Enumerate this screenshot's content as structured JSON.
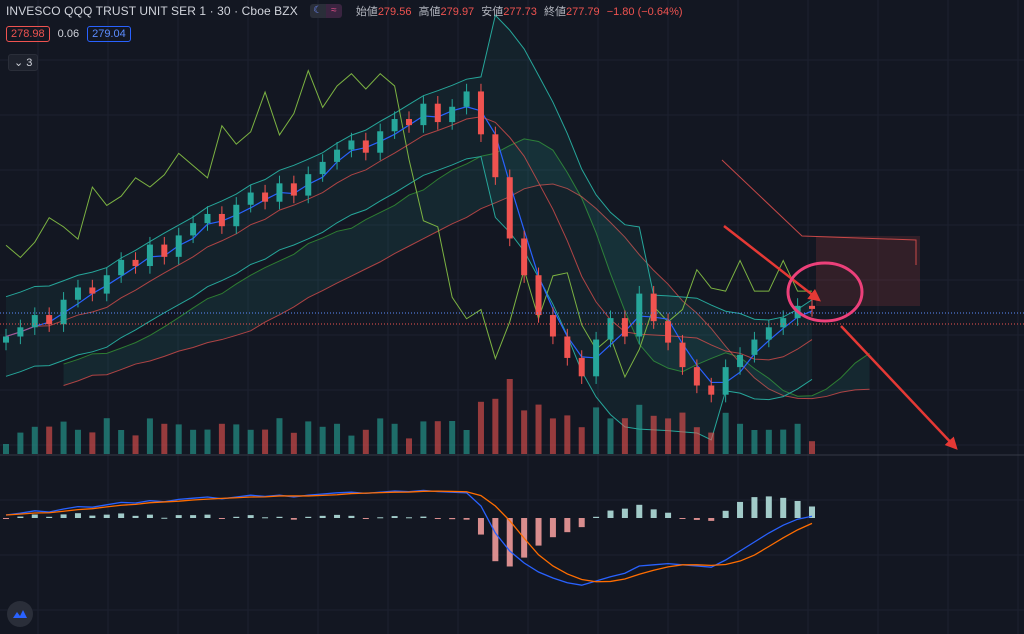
{
  "header": {
    "symbol": "INVESCO QQQ TRUST UNIT SER 1 · 30 · Cboe BZX",
    "ohlc": [
      {
        "label": "始値",
        "value": "279.56"
      },
      {
        "label": "高値",
        "value": "279.97"
      },
      {
        "label": "安値",
        "value": "277.73"
      },
      {
        "label": "終値",
        "value": "277.79"
      }
    ],
    "change": "−1.80 (−0.64%)"
  },
  "prices": {
    "bid": "278.98",
    "spread": "0.06",
    "ask": "279.04"
  },
  "collapse": {
    "label": "3"
  },
  "icons": {
    "theme": "moon-icon",
    "compare": "waves-icon",
    "chevron": "chevron-down-icon",
    "logo": "tradingview-logo-icon"
  },
  "colors": {
    "up": "#26a69a",
    "down": "#ef5350",
    "bg": "#131722",
    "annotation": "#e53935",
    "circle": "#ec407a"
  },
  "chart_data": {
    "type": "line",
    "series": [
      {
        "values": [
          272.6,
          272.9,
          273.3,
          273.0,
          273.8,
          274.2,
          274.0,
          274.6,
          275.1,
          274.9,
          275.6,
          275.2,
          275.9,
          276.3,
          276.6,
          276.2,
          276.9,
          277.3,
          277.0,
          277.6,
          277.2,
          277.9,
          278.3,
          278.7,
          279.0,
          278.6,
          279.3,
          279.7,
          279.5,
          280.2,
          279.6,
          280.1,
          280.6,
          279.2,
          277.8,
          275.8,
          274.6,
          273.3,
          272.6,
          271.9,
          271.3,
          272.5,
          273.2,
          272.6,
          274.0,
          273.1,
          272.4,
          271.6,
          271.0,
          270.7,
          271.6,
          272.0,
          272.5,
          272.9,
          273.2,
          273.6,
          273.5
        ]
      },
      {
        "values": [
          0.05,
          0.08,
          0.12,
          0.1,
          0.15,
          0.19,
          0.18,
          0.22,
          0.26,
          0.25,
          0.29,
          0.27,
          0.31,
          0.33,
          0.35,
          0.32,
          0.35,
          0.38,
          0.36,
          0.38,
          0.35,
          0.38,
          0.4,
          0.42,
          0.43,
          0.41,
          0.43,
          0.45,
          0.44,
          0.46,
          0.44,
          0.43,
          0.42,
          0.2,
          -0.25,
          -0.55,
          -0.75,
          -0.9,
          -1.0,
          -1.08,
          -1.12,
          -1.05,
          -0.98,
          -0.92,
          -0.8,
          -0.78,
          -0.76,
          -0.78,
          -0.8,
          -0.82,
          -0.7,
          -0.55,
          -0.4,
          -0.25,
          -0.12,
          -0.02,
          0.03
        ]
      }
    ]
  }
}
